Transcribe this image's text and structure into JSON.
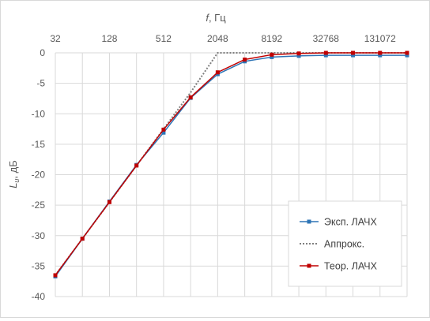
{
  "chart_data": {
    "type": "line",
    "x_axis": {
      "title_var": "f",
      "title_unit": ", Гц",
      "position": "top",
      "scale": "log2",
      "range": [
        32,
        262144
      ],
      "tick_labels": [
        "32",
        "128",
        "512",
        "2048",
        "8192",
        "32768",
        "131072"
      ],
      "tick_values": [
        32,
        128,
        512,
        2048,
        8192,
        32768,
        131072
      ]
    },
    "y_axis": {
      "title_var": "L",
      "title_sub": "u",
      "title_unit": ", дБ",
      "range": [
        -40,
        0
      ],
      "tick_labels": [
        "0",
        "-5",
        "-10",
        "-15",
        "-20",
        "-25",
        "-30",
        "-35",
        "-40"
      ],
      "tick_values": [
        0,
        -5,
        -10,
        -15,
        -20,
        -25,
        -30,
        -35,
        -40
      ]
    },
    "grid": true,
    "legend_position": "bottom-right",
    "x": [
      32,
      128,
      256,
      512,
      1024,
      2048,
      4096,
      8192,
      16384,
      32768,
      65536,
      131072,
      262144
    ],
    "series": [
      {
        "name": "Эксп. ЛАЧХ",
        "color": "#2e75b6",
        "style": "solid",
        "marker": "square",
        "x": [
          32,
          64,
          128,
          256,
          512,
          1024,
          2048,
          4096,
          8192,
          16384,
          32768,
          65536,
          131072,
          262144
        ],
        "values": [
          -36.7,
          -30.5,
          -24.4,
          -18.4,
          -13.1,
          -7.4,
          -3.5,
          -1.4,
          -0.7,
          -0.5,
          -0.4,
          -0.4,
          -0.4,
          -0.4
        ]
      },
      {
        "name": "Аппрокс.",
        "color": "#7f7f7f",
        "style": "dotted",
        "marker": "none",
        "x": [
          32,
          64,
          128,
          256,
          512,
          1024,
          2048,
          4096,
          8192,
          16384,
          32768,
          65536,
          131072,
          262144
        ],
        "values": [
          -36.5,
          -30.5,
          -24.5,
          -18.5,
          -12.5,
          -6.5,
          0,
          0,
          0,
          0,
          0,
          0,
          0,
          0
        ]
      },
      {
        "name": "Теор. ЛАЧХ",
        "color": "#c00000",
        "style": "solid",
        "marker": "square",
        "x": [
          32,
          64,
          128,
          256,
          512,
          1024,
          2048,
          4096,
          8192,
          16384,
          32768,
          65536,
          131072,
          262144
        ],
        "values": [
          -36.5,
          -30.5,
          -24.5,
          -18.5,
          -12.6,
          -7.3,
          -3.2,
          -1.1,
          -0.3,
          -0.1,
          0,
          0,
          0,
          0
        ]
      }
    ]
  }
}
